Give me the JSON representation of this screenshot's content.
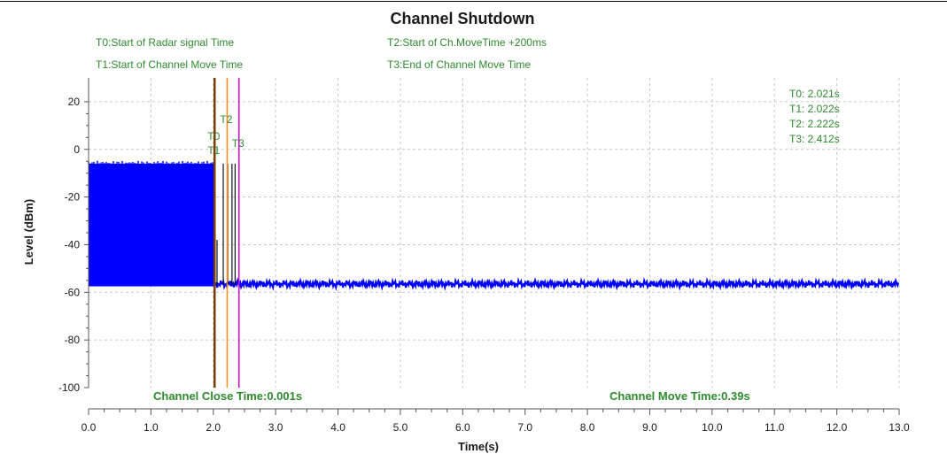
{
  "chart_data": {
    "type": "line",
    "title": "Channel Shutdown",
    "xlabel": "Time(s)",
    "ylabel": "Level (dBm)",
    "xlim": [
      0,
      13
    ],
    "ylim": [
      -100,
      30
    ],
    "x_ticks": [
      0,
      1,
      2,
      3,
      4,
      5,
      6,
      7,
      8,
      9,
      10,
      11,
      12,
      13
    ],
    "x_tick_labels": [
      "0.0",
      "1.0",
      "2.0",
      "3.0",
      "4.0",
      "5.0",
      "6.0",
      "7.0",
      "8.0",
      "9.0",
      "10.0",
      "11.0",
      "12.0",
      "13.0"
    ],
    "y_ticks": [
      20,
      0,
      -20,
      -40,
      -60,
      -80,
      -100
    ],
    "y_tick_labels": [
      "20",
      "0",
      "-20",
      "-40",
      "-60",
      "-80",
      "-100"
    ],
    "grid": true,
    "series": [
      {
        "color": "#0000ff",
        "segments": [
          {
            "x_start": 0.0,
            "x_end": 2.02,
            "level_top": -6,
            "level_bottom": -57.5
          },
          {
            "x_start": 2.02,
            "x_end": 13.0,
            "level_center": -56.5,
            "level_spread": 1.5
          }
        ]
      }
    ],
    "markers": [
      {
        "id": "T0",
        "time": 2.021,
        "color": "#7a3f00",
        "label_level": 4
      },
      {
        "id": "T1",
        "time": 2.022,
        "color": "#7a3f00",
        "label_level": -2
      },
      {
        "id": "T2",
        "time": 2.222,
        "color": "#ff8c1a",
        "label_level": 11
      },
      {
        "id": "T3",
        "time": 2.412,
        "color": "#dd00dd",
        "label_level": 1
      }
    ],
    "spikes": [
      {
        "time": 2.06,
        "level": -38
      },
      {
        "time": 2.16,
        "level": -6
      },
      {
        "time": 2.23,
        "level": -6
      },
      {
        "time": 2.3,
        "level": -6
      },
      {
        "time": 2.35,
        "level": -6
      }
    ]
  },
  "legend": {
    "t0": "T0:Start of Radar signal Time",
    "t1": "T1:Start of Channel Move Time",
    "t2": "T2:Start of Ch.MoveTime +200ms",
    "t3": "T3:End of Channel Move Time"
  },
  "readouts": [
    "T0: 2.021s",
    "T1: 2.022s",
    "T2: 2.222s",
    "T3: 2.412s"
  ],
  "notes": {
    "close_time": "Channel Close Time:0.001s",
    "move_time": "Channel Move Time:0.39s"
  }
}
